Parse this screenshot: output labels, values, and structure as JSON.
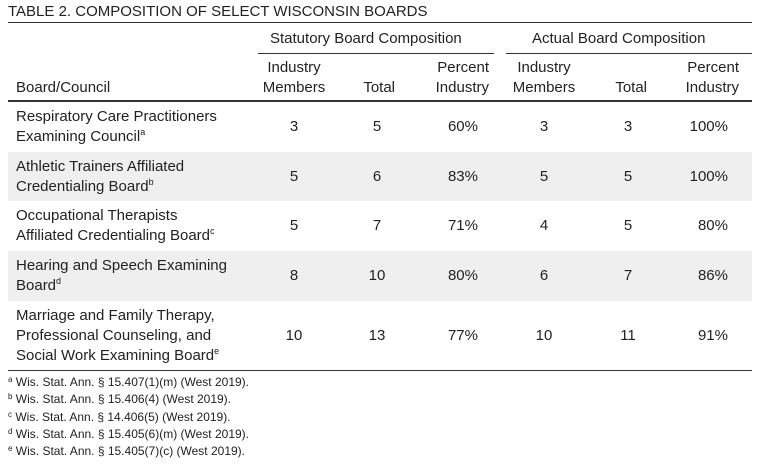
{
  "title": "TABLE 2. COMPOSITION OF SELECT WISCONSIN BOARDS",
  "table": {
    "group_headers": [
      "Statutory Board Composition",
      "Actual Board Composition"
    ],
    "columns": [
      [
        "Board/Council"
      ],
      [
        "Industry",
        "Members"
      ],
      [
        "Total"
      ],
      [
        "Percent",
        "Industry"
      ],
      [
        "Industry",
        "Members"
      ],
      [
        "Total"
      ],
      [
        "Percent",
        "Industry"
      ]
    ],
    "rows": [
      {
        "board": [
          "Respiratory Care Practitioners",
          "Examining Council"
        ],
        "note": "a",
        "cells": [
          "3",
          "5",
          "60%",
          "3",
          "3",
          "100%"
        ]
      },
      {
        "board": [
          "Athletic Trainers Affiliated",
          "Credentialing Board"
        ],
        "note": "b",
        "cells": [
          "5",
          "6",
          "83%",
          "5",
          "5",
          "100%"
        ]
      },
      {
        "board": [
          "Occupational Therapists",
          "Affiliated Credentialing Board"
        ],
        "note": "c",
        "cells": [
          "5",
          "7",
          "71%",
          "4",
          "5",
          "80%"
        ]
      },
      {
        "board": [
          "Hearing and Speech Examining",
          "Board"
        ],
        "note": "d",
        "cells": [
          "8",
          "10",
          "80%",
          "6",
          "7",
          "86%"
        ]
      },
      {
        "board": [
          "Marriage and Family Therapy,",
          "Professional Counseling, and",
          "Social Work Examining Board"
        ],
        "note": "e",
        "cells": [
          "10",
          "13",
          "77%",
          "10",
          "11",
          "91%"
        ]
      }
    ]
  },
  "footnotes": [
    {
      "mark": "a",
      "text": "Wis. Stat. Ann. § 15.407(1)(m) (West 2019)."
    },
    {
      "mark": "b",
      "text": "Wis. Stat. Ann. § 15.406(4) (West 2019)."
    },
    {
      "mark": "c",
      "text": "Wis. Stat. Ann. § 14.406(5) (West 2019)."
    },
    {
      "mark": "d",
      "text": "Wis. Stat. Ann. § 15.405(6)(m) (West 2019)."
    },
    {
      "mark": "e",
      "text": "Wis. Stat. Ann. § 15.405(7)(c) (West 2019)."
    }
  ]
}
